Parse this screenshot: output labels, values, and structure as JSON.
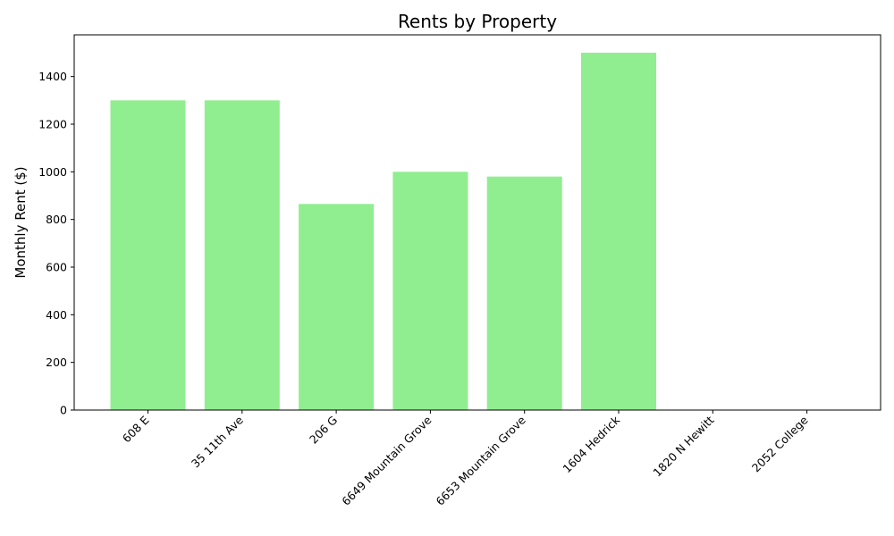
{
  "chart_data": {
    "type": "bar",
    "title": "Rents by Property",
    "xlabel": "",
    "ylabel": "Monthly Rent ($)",
    "categories": [
      "608 E",
      "35 11th Ave",
      "206 G",
      "6649 Mountain Grove",
      "6653 Mountain Grove",
      "1604 Hedrick",
      "1820 N Hewitt",
      "2052 College"
    ],
    "values": [
      1300,
      1300,
      865,
      1000,
      980,
      1500,
      0,
      0
    ],
    "yticks": [
      0,
      200,
      400,
      600,
      800,
      1000,
      1200,
      1400
    ],
    "ylim": [
      0,
      1575
    ],
    "bar_color": "#90ee90",
    "grid": false
  }
}
